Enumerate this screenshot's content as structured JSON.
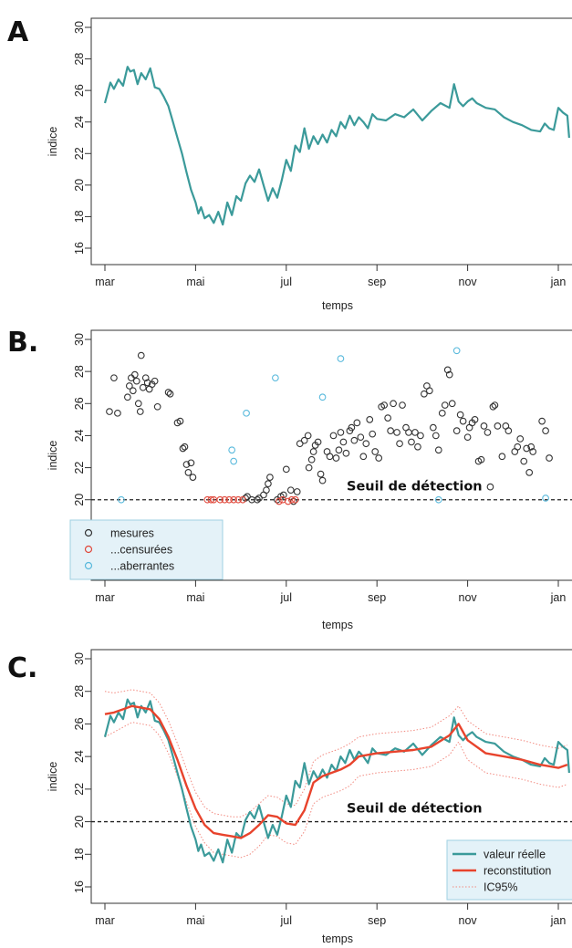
{
  "chart_data": [
    {
      "panel": "A",
      "type": "line",
      "xlabel": "temps",
      "ylabel": "indice",
      "x_ticks": [
        "mar",
        "mai",
        "jul",
        "sep",
        "nov",
        "jan"
      ],
      "y_ticks": [
        16,
        18,
        20,
        22,
        24,
        26,
        28,
        30
      ],
      "ylim": [
        15.2,
        30.4
      ],
      "xlim": [
        -0.03,
        5.2
      ],
      "colors": {
        "series": "#3b9a9a"
      },
      "series": [
        {
          "x": [
            0,
            0.06,
            0.1,
            0.15,
            0.2,
            0.25,
            0.28,
            0.32,
            0.36,
            0.4,
            0.45,
            0.5,
            0.55,
            0.6,
            0.65,
            0.7,
            0.75,
            0.8,
            0.85,
            0.9,
            0.95,
            1.0,
            1.03,
            1.06,
            1.1,
            1.15,
            1.2,
            1.25,
            1.3,
            1.35,
            1.4,
            1.45,
            1.5,
            1.55,
            1.6,
            1.65,
            1.7,
            1.75,
            1.8,
            1.85,
            1.9,
            1.95,
            2.0,
            2.05,
            2.1,
            2.15,
            2.2,
            2.25,
            2.3,
            2.35,
            2.4,
            2.45,
            2.5,
            2.55,
            2.6,
            2.65,
            2.7,
            2.75,
            2.8,
            2.85,
            2.9,
            2.95,
            3.0,
            3.1,
            3.2,
            3.3,
            3.4,
            3.5,
            3.6,
            3.7,
            3.8,
            3.85,
            3.9,
            3.95,
            4.0,
            4.05,
            4.1,
            4.2,
            4.3,
            4.4,
            4.5,
            4.6,
            4.7,
            4.8,
            4.85,
            4.9,
            4.95,
            5.0,
            5.05,
            5.1,
            5.12
          ],
          "y": [
            25.2,
            26.5,
            26.1,
            26.7,
            26.3,
            27.5,
            27.2,
            27.3,
            26.4,
            27.1,
            26.7,
            27.4,
            26.2,
            26.1,
            25.6,
            25.0,
            24.0,
            23.0,
            22.0,
            20.8,
            19.7,
            18.9,
            18.2,
            18.6,
            17.9,
            18.1,
            17.6,
            18.3,
            17.5,
            18.9,
            18.1,
            19.3,
            19.0,
            20.1,
            20.6,
            20.2,
            21.0,
            20.0,
            19.0,
            19.8,
            19.2,
            20.3,
            21.6,
            20.9,
            22.5,
            22.1,
            23.6,
            22.3,
            23.1,
            22.6,
            23.2,
            22.7,
            23.5,
            23.1,
            24.0,
            23.6,
            24.4,
            23.8,
            24.3,
            24.0,
            23.6,
            24.5,
            24.2,
            24.1,
            24.5,
            24.3,
            24.8,
            24.1,
            24.7,
            25.2,
            24.9,
            26.4,
            25.3,
            25.0,
            25.3,
            25.5,
            25.2,
            24.9,
            24.8,
            24.3,
            24.0,
            23.8,
            23.5,
            23.4,
            23.9,
            23.6,
            23.5,
            24.9,
            24.6,
            24.4,
            23.0
          ]
        }
      ]
    },
    {
      "panel": "B.",
      "type": "scatter",
      "xlabel": "temps",
      "ylabel": "indice",
      "x_ticks": [
        "mar",
        "mai",
        "jul",
        "sep",
        "nov",
        "jan"
      ],
      "y_ticks": [
        16,
        18,
        20,
        22,
        24,
        26,
        28,
        30
      ],
      "ylim": [
        15.2,
        30.4
      ],
      "xlim": [
        -0.03,
        5.2
      ],
      "threshold": {
        "value": 20,
        "label": "Seuil de détection"
      },
      "legend": {
        "placement": "bottom-left",
        "entries": [
          {
            "label": "mesures",
            "color": "#333333"
          },
          {
            "label": "...censurées",
            "color": "#e0483b"
          },
          {
            "label": "...aberrantes",
            "color": "#58b9dc"
          }
        ]
      },
      "points_mesures": [
        [
          0.05,
          25.5
        ],
        [
          0.1,
          27.6
        ],
        [
          0.14,
          25.4
        ],
        [
          0.25,
          26.4
        ],
        [
          0.27,
          27.1
        ],
        [
          0.29,
          27.6
        ],
        [
          0.31,
          26.8
        ],
        [
          0.33,
          27.8
        ],
        [
          0.35,
          27.4
        ],
        [
          0.37,
          26.0
        ],
        [
          0.39,
          25.5
        ],
        [
          0.4,
          29.0
        ],
        [
          0.42,
          27.0
        ],
        [
          0.45,
          27.6
        ],
        [
          0.47,
          27.3
        ],
        [
          0.49,
          26.9
        ],
        [
          0.52,
          27.2
        ],
        [
          0.55,
          27.4
        ],
        [
          0.58,
          25.8
        ],
        [
          0.7,
          26.7
        ],
        [
          0.72,
          26.6
        ],
        [
          0.8,
          24.8
        ],
        [
          0.83,
          24.9
        ],
        [
          0.86,
          23.2
        ],
        [
          0.88,
          23.3
        ],
        [
          0.9,
          22.2
        ],
        [
          0.92,
          21.7
        ],
        [
          0.95,
          22.3
        ],
        [
          0.97,
          21.4
        ],
        [
          1.55,
          20.1
        ],
        [
          1.57,
          20.2
        ],
        [
          1.62,
          20.0
        ],
        [
          1.68,
          20.0
        ],
        [
          1.7,
          20.1
        ],
        [
          1.75,
          20.3
        ],
        [
          1.78,
          20.6
        ],
        [
          1.8,
          21.0
        ],
        [
          1.82,
          21.4
        ],
        [
          1.9,
          20.0
        ],
        [
          1.94,
          20.2
        ],
        [
          1.97,
          20.3
        ],
        [
          2.0,
          21.9
        ],
        [
          2.05,
          20.6
        ],
        [
          2.08,
          19.9
        ],
        [
          2.12,
          20.5
        ],
        [
          2.15,
          23.5
        ],
        [
          2.2,
          23.7
        ],
        [
          2.24,
          24.0
        ],
        [
          2.25,
          22.0
        ],
        [
          2.28,
          22.5
        ],
        [
          2.3,
          23.0
        ],
        [
          2.32,
          23.4
        ],
        [
          2.35,
          23.6
        ],
        [
          2.38,
          21.6
        ],
        [
          2.4,
          21.2
        ],
        [
          2.45,
          23.0
        ],
        [
          2.48,
          22.7
        ],
        [
          2.52,
          24.0
        ],
        [
          2.55,
          22.6
        ],
        [
          2.58,
          23.1
        ],
        [
          2.6,
          24.2
        ],
        [
          2.63,
          23.6
        ],
        [
          2.66,
          22.9
        ],
        [
          2.7,
          24.3
        ],
        [
          2.72,
          24.5
        ],
        [
          2.75,
          23.7
        ],
        [
          2.78,
          24.8
        ],
        [
          2.82,
          23.9
        ],
        [
          2.85,
          22.7
        ],
        [
          2.88,
          23.5
        ],
        [
          2.92,
          25.0
        ],
        [
          2.95,
          24.1
        ],
        [
          2.98,
          23.0
        ],
        [
          3.02,
          22.6
        ],
        [
          3.05,
          25.8
        ],
        [
          3.08,
          25.9
        ],
        [
          3.12,
          25.1
        ],
        [
          3.15,
          24.3
        ],
        [
          3.18,
          26.0
        ],
        [
          3.22,
          24.2
        ],
        [
          3.25,
          23.5
        ],
        [
          3.28,
          25.9
        ],
        [
          3.32,
          24.5
        ],
        [
          3.35,
          24.2
        ],
        [
          3.38,
          23.6
        ],
        [
          3.42,
          24.2
        ],
        [
          3.45,
          23.3
        ],
        [
          3.48,
          24.0
        ],
        [
          3.52,
          26.6
        ],
        [
          3.55,
          27.1
        ],
        [
          3.58,
          26.8
        ],
        [
          3.62,
          24.5
        ],
        [
          3.65,
          24.0
        ],
        [
          3.68,
          23.1
        ],
        [
          3.72,
          25.4
        ],
        [
          3.75,
          25.9
        ],
        [
          3.78,
          28.1
        ],
        [
          3.8,
          27.8
        ],
        [
          3.83,
          26.0
        ],
        [
          3.88,
          24.3
        ],
        [
          3.92,
          25.3
        ],
        [
          3.95,
          24.9
        ],
        [
          4.0,
          23.9
        ],
        [
          4.02,
          24.5
        ],
        [
          4.05,
          24.8
        ],
        [
          4.08,
          25.0
        ],
        [
          4.12,
          22.4
        ],
        [
          4.15,
          22.5
        ],
        [
          4.18,
          24.6
        ],
        [
          4.22,
          24.2
        ],
        [
          4.25,
          20.8
        ],
        [
          4.28,
          25.8
        ],
        [
          4.3,
          25.9
        ],
        [
          4.33,
          24.6
        ],
        [
          4.38,
          22.7
        ],
        [
          4.42,
          24.6
        ],
        [
          4.45,
          24.3
        ],
        [
          4.52,
          23.0
        ],
        [
          4.55,
          23.3
        ],
        [
          4.58,
          23.8
        ],
        [
          4.62,
          22.4
        ],
        [
          4.65,
          23.2
        ],
        [
          4.68,
          21.7
        ],
        [
          4.7,
          23.3
        ],
        [
          4.72,
          23.0
        ],
        [
          4.82,
          24.9
        ],
        [
          4.86,
          24.3
        ],
        [
          4.9,
          22.6
        ]
      ],
      "points_censurees": [
        [
          1.13,
          20.0
        ],
        [
          1.17,
          20.0
        ],
        [
          1.2,
          20.0
        ],
        [
          1.27,
          20.0
        ],
        [
          1.32,
          20.0
        ],
        [
          1.37,
          20.0
        ],
        [
          1.42,
          20.0
        ],
        [
          1.47,
          20.0
        ],
        [
          1.52,
          20.0
        ],
        [
          1.92,
          19.9
        ],
        [
          1.96,
          20.0
        ],
        [
          2.02,
          19.9
        ],
        [
          2.06,
          20.0
        ],
        [
          2.1,
          20.0
        ]
      ],
      "points_aberrantes": [
        [
          0.18,
          20.0
        ],
        [
          1.4,
          23.1
        ],
        [
          1.42,
          22.4
        ],
        [
          1.56,
          25.4
        ],
        [
          1.88,
          27.6
        ],
        [
          2.4,
          26.4
        ],
        [
          2.6,
          28.8
        ],
        [
          3.68,
          20.0
        ],
        [
          3.88,
          29.3
        ],
        [
          4.86,
          20.1
        ]
      ]
    },
    {
      "panel": "C.",
      "type": "line",
      "xlabel": "temps",
      "ylabel": "indice",
      "x_ticks": [
        "mar",
        "mai",
        "jul",
        "sep",
        "nov",
        "jan"
      ],
      "y_ticks": [
        16,
        18,
        20,
        22,
        24,
        26,
        28,
        30
      ],
      "ylim": [
        15.2,
        30.4
      ],
      "xlim": [
        -0.03,
        5.2
      ],
      "threshold": {
        "value": 20,
        "label": "Seuil de détection"
      },
      "legend": {
        "placement": "bottom-right",
        "entries": [
          {
            "label": "valeur réelle",
            "color": "#3b9a9a",
            "style": "solid-thick"
          },
          {
            "label": "reconstitution",
            "color": "#e8432c",
            "style": "solid-thick"
          },
          {
            "label": "IC95%",
            "color": "#f28a80",
            "style": "dotted"
          }
        ]
      },
      "reconstitution": {
        "x": [
          0,
          0.1,
          0.2,
          0.3,
          0.4,
          0.5,
          0.6,
          0.7,
          0.8,
          0.9,
          1.0,
          1.1,
          1.2,
          1.3,
          1.4,
          1.5,
          1.6,
          1.7,
          1.8,
          1.9,
          2.0,
          2.1,
          2.2,
          2.3,
          2.4,
          2.5,
          2.6,
          2.7,
          2.8,
          3.0,
          3.2,
          3.4,
          3.6,
          3.8,
          3.9,
          4.0,
          4.2,
          4.4,
          4.6,
          4.8,
          5.0,
          5.1
        ],
        "y": [
          26.6,
          26.7,
          26.9,
          27.1,
          27.0,
          26.9,
          26.3,
          25.2,
          23.8,
          22.2,
          20.8,
          19.8,
          19.3,
          19.2,
          19.1,
          19.0,
          19.3,
          19.8,
          20.4,
          20.3,
          19.9,
          19.8,
          20.7,
          22.4,
          22.8,
          23.0,
          23.2,
          23.5,
          24.0,
          24.2,
          24.3,
          24.4,
          24.6,
          25.3,
          26.0,
          25.0,
          24.2,
          24.0,
          23.8,
          23.5,
          23.3,
          23.5
        ]
      },
      "ic95_upper": [
        28.0,
        27.9,
        28.0,
        28.1,
        28.0,
        27.9,
        27.3,
        26.2,
        24.8,
        23.2,
        21.8,
        20.9,
        20.5,
        20.4,
        20.3,
        20.3,
        20.6,
        21.1,
        21.6,
        21.5,
        21.1,
        21.0,
        22.0,
        23.7,
        24.1,
        24.3,
        24.5,
        24.8,
        25.2,
        25.4,
        25.5,
        25.6,
        25.8,
        26.5,
        27.1,
        26.2,
        25.4,
        25.2,
        25.0,
        24.7,
        24.5,
        24.7
      ],
      "ic95_lower": [
        25.2,
        25.5,
        25.8,
        26.1,
        26.0,
        25.9,
        25.3,
        24.2,
        22.8,
        21.2,
        19.7,
        18.7,
        18.1,
        18.0,
        17.9,
        17.8,
        18.0,
        18.5,
        19.2,
        19.1,
        18.7,
        18.6,
        19.4,
        21.1,
        21.5,
        21.7,
        21.9,
        22.2,
        22.8,
        23.0,
        23.1,
        23.2,
        23.4,
        24.1,
        24.9,
        23.8,
        23.0,
        22.8,
        22.6,
        22.3,
        22.1,
        22.3
      ]
    }
  ]
}
